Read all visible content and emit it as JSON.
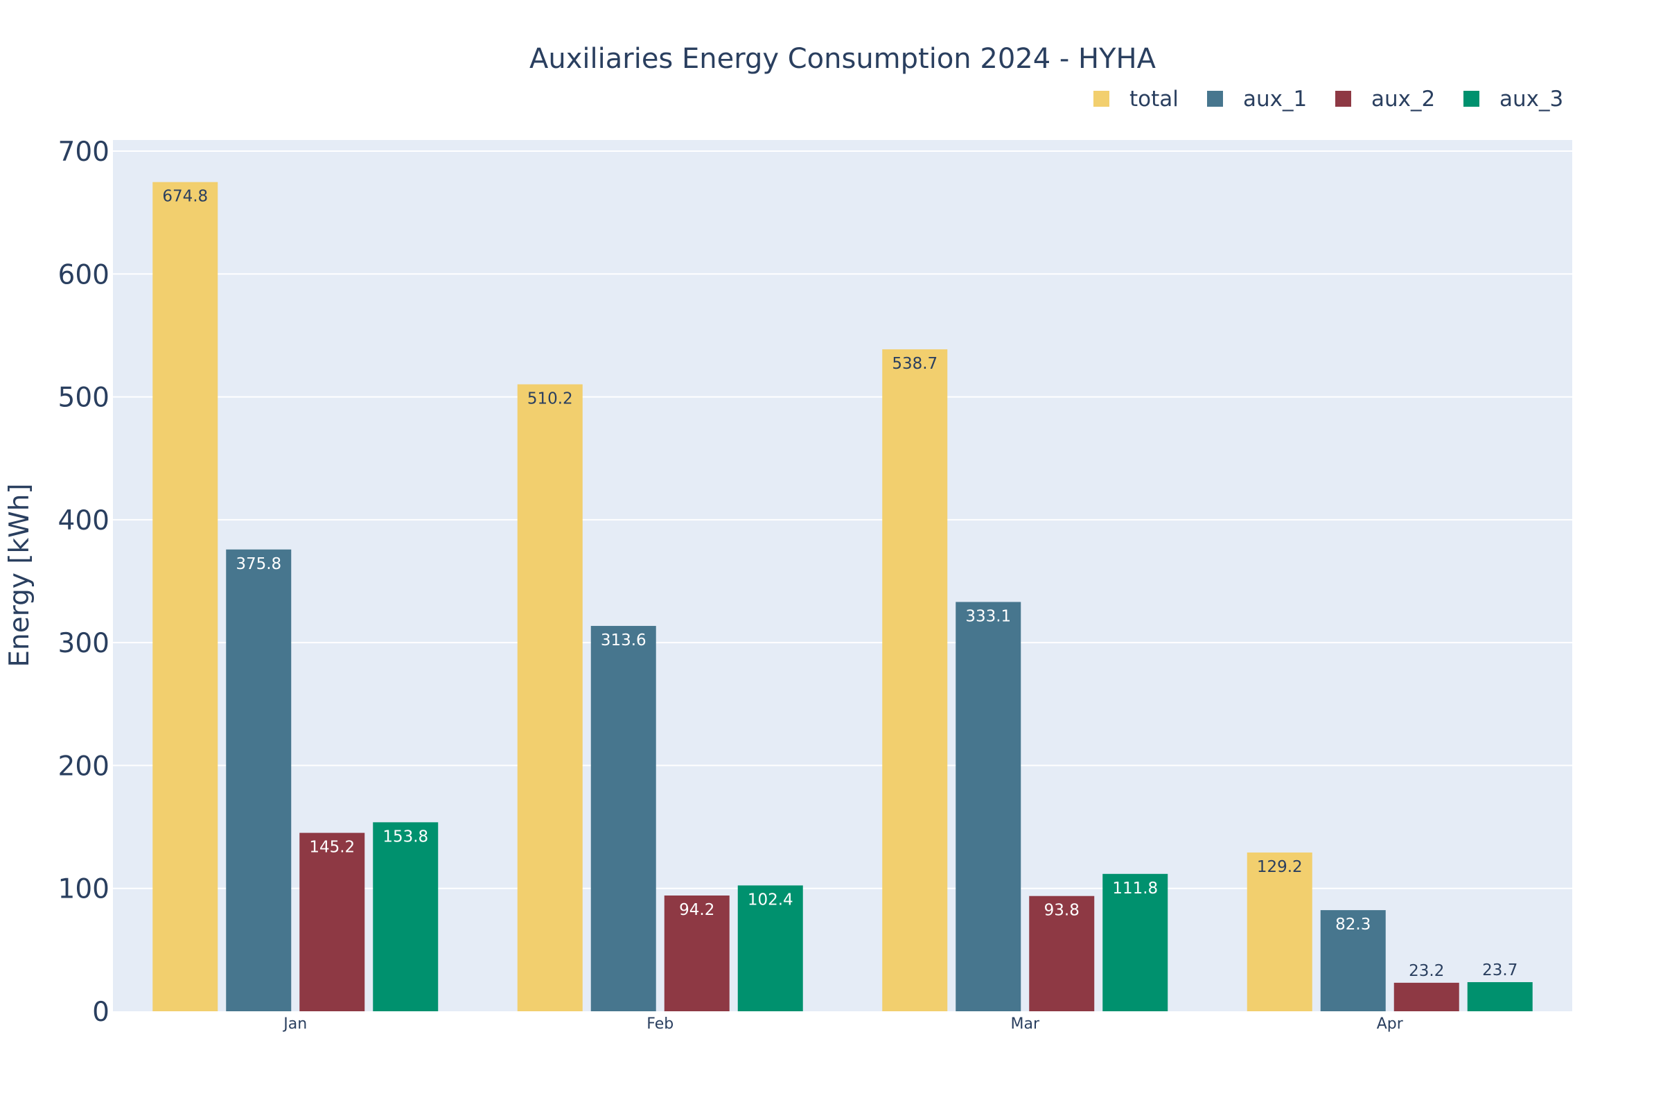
{
  "chart_data": {
    "type": "bar",
    "title": "Auxiliaries Energy Consumption 2024 - HYHA",
    "xlabel": "",
    "ylabel": "Energy [kWh]",
    "categories": [
      "Jan",
      "Feb",
      "Mar",
      "Apr"
    ],
    "ylim": [
      0,
      710
    ],
    "yticks": [
      0,
      100,
      200,
      300,
      400,
      500,
      600,
      700
    ],
    "grid": true,
    "legend_position": "top-right",
    "series": [
      {
        "name": "total",
        "color": "#f2cf6e",
        "label_color": "#2a3f5f",
        "values": [
          674.8,
          510.2,
          538.7,
          129.2
        ]
      },
      {
        "name": "aux_1",
        "color": "#47768e",
        "label_color": "#ffffff",
        "values": [
          375.8,
          313.6,
          333.1,
          82.3
        ]
      },
      {
        "name": "aux_2",
        "color": "#8e3944",
        "label_color": "#ffffff",
        "values": [
          145.2,
          94.2,
          93.8,
          23.2
        ]
      },
      {
        "name": "aux_3",
        "color": "#00916e",
        "label_color": "#ffffff",
        "values": [
          153.8,
          102.4,
          111.8,
          23.7
        ]
      }
    ],
    "data_labels": [
      [
        "674.8",
        "510.2",
        "538.7",
        "129.2"
      ],
      [
        "375.8",
        "313.6",
        "333.1",
        "82.3"
      ],
      [
        "145.2",
        "94.2",
        "93.8",
        "23.2"
      ],
      [
        "153.8",
        "102.4",
        "111.8",
        "23.7"
      ]
    ]
  },
  "colors": {
    "plot_background": "#e5ecf6",
    "grid": "#ffffff",
    "text": "#2a3f5f"
  }
}
